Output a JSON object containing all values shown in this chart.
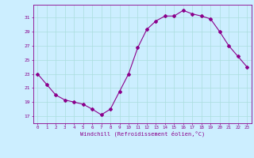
{
  "x": [
    0,
    1,
    2,
    3,
    4,
    5,
    6,
    7,
    8,
    9,
    10,
    11,
    12,
    13,
    14,
    15,
    16,
    17,
    18,
    19,
    20,
    21,
    22,
    23
  ],
  "y": [
    23.0,
    21.5,
    20.0,
    19.3,
    19.0,
    18.7,
    18.0,
    17.2,
    18.0,
    20.5,
    23.0,
    26.7,
    29.3,
    30.5,
    31.2,
    31.2,
    32.0,
    31.5,
    31.2,
    30.8,
    29.0,
    27.0,
    25.5,
    24.0
  ],
  "line_color": "#8B008B",
  "marker": "D",
  "marker_size": 2,
  "bg_color": "#cceeff",
  "grid_color": "#aadddd",
  "xlabel": "Windchill (Refroidissement éolien,°C)",
  "xlabel_color": "#8B008B",
  "tick_color": "#8B008B",
  "yticks": [
    17,
    19,
    21,
    23,
    25,
    27,
    29,
    31
  ],
  "ylim": [
    16.0,
    32.8
  ],
  "xlim": [
    -0.5,
    23.5
  ],
  "xticks": [
    0,
    1,
    2,
    3,
    4,
    5,
    6,
    7,
    8,
    9,
    10,
    11,
    12,
    13,
    14,
    15,
    16,
    17,
    18,
    19,
    20,
    21,
    22,
    23
  ]
}
